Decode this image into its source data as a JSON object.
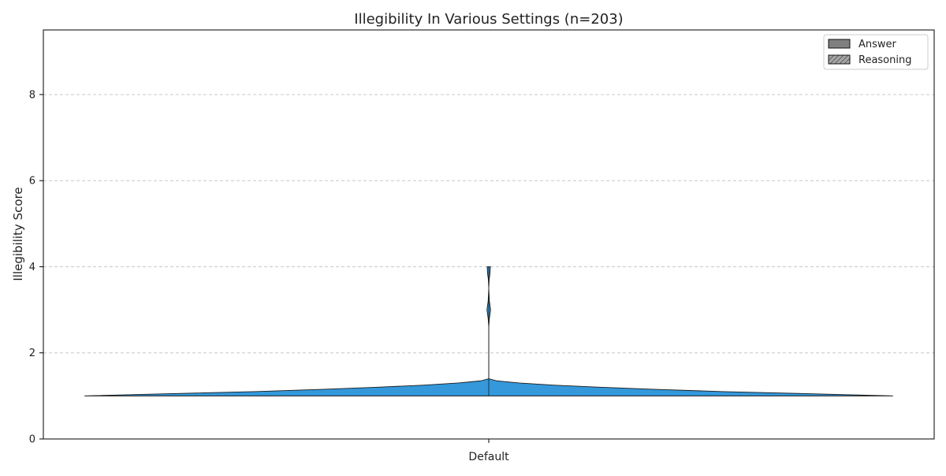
{
  "chart_data": {
    "type": "violin",
    "title": "Illegibility In Various Settings (n=203)",
    "xlabel": "",
    "ylabel": "Illegibility Score",
    "categories": [
      "Default"
    ],
    "ylim": [
      0,
      9.5
    ],
    "yticks": [
      0,
      2,
      4,
      6,
      8
    ],
    "grid": true,
    "grid_axis": "y",
    "legend_position": "top-right",
    "legend": [
      {
        "label": "Answer",
        "pattern": "solid",
        "color": "#808080"
      },
      {
        "label": "Reasoning",
        "pattern": "hatched",
        "color": "#a6a6a6"
      }
    ],
    "series": [
      {
        "category": "Default",
        "type": "answer",
        "color": "#3498db",
        "min": 1.0,
        "max": 4.0,
        "density_profile": [
          {
            "y": 1.0,
            "density": 1.0
          },
          {
            "y": 1.05,
            "density": 0.8
          },
          {
            "y": 1.1,
            "density": 0.58
          },
          {
            "y": 1.15,
            "density": 0.42
          },
          {
            "y": 1.2,
            "density": 0.28
          },
          {
            "y": 1.25,
            "density": 0.16
          },
          {
            "y": 1.3,
            "density": 0.075
          },
          {
            "y": 1.35,
            "density": 0.02
          },
          {
            "y": 1.4,
            "density": 0.0
          },
          {
            "y": 1.6,
            "density": 0.0
          },
          {
            "y": 2.6,
            "density": 0.0
          },
          {
            "y": 2.8,
            "density": 0.0015
          },
          {
            "y": 3.0,
            "density": 0.0045
          },
          {
            "y": 3.2,
            "density": 0.0015
          },
          {
            "y": 3.5,
            "density": 0.0
          },
          {
            "y": 3.7,
            "density": 0.001
          },
          {
            "y": 3.85,
            "density": 0.003
          },
          {
            "y": 4.0,
            "density": 0.004
          }
        ]
      }
    ]
  }
}
